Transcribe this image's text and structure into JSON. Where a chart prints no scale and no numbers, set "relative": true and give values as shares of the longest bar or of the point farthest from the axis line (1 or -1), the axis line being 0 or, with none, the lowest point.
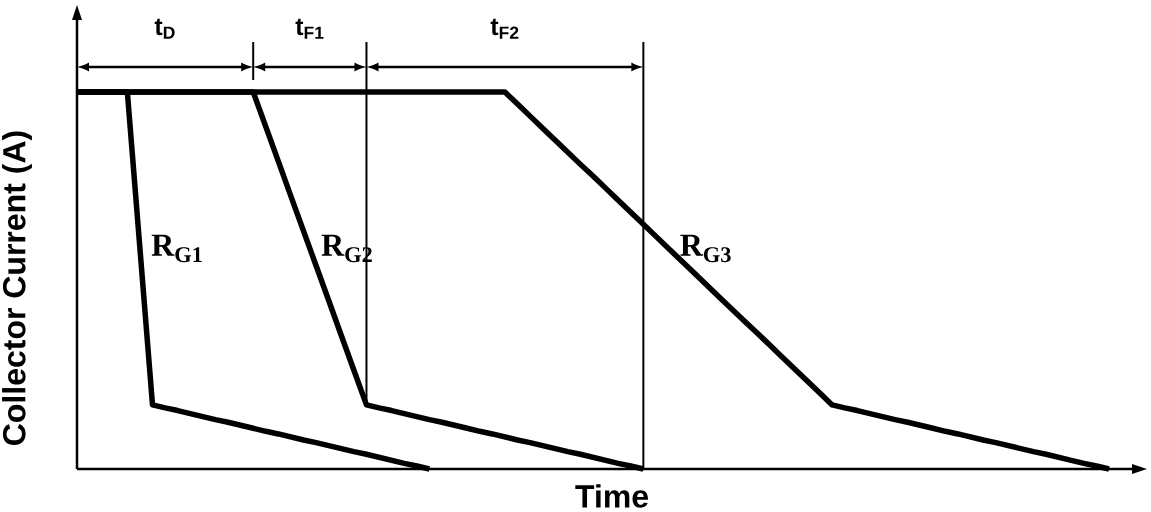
{
  "chart_data": {
    "type": "line",
    "relative": true,
    "xlabel": "Time",
    "ylabel": "Collector Current (A)",
    "categories": [
      null,
      null,
      null,
      null,
      null,
      null,
      null,
      null,
      null,
      null,
      null,
      null,
      null,
      null,
      null,
      null,
      null,
      null,
      null,
      null,
      null,
      null,
      null,
      null,
      null,
      null,
      null,
      null,
      null,
      null,
      null,
      null,
      null,
      null,
      null,
      null,
      null,
      null,
      null,
      null,
      null,
      null,
      null,
      null,
      null,
      null,
      null,
      null,
      null,
      null,
      null,
      null,
      null,
      null,
      null,
      null,
      null,
      null,
      null,
      null,
      null,
      null,
      null,
      null,
      null,
      null,
      null,
      null,
      null,
      null,
      null,
      null,
      null,
      null,
      null,
      null,
      null,
      null,
      null,
      null,
      null,
      null,
      null
    ],
    "series": [
      {
        "name": "R$_{G1}$",
        "color": "#000000",
        "values": [
          1,
          1,
          1,
          1,
          1,
          0.585,
          0.17,
          0.162,
          0.155,
          0.147,
          0.139,
          0.131,
          0.124,
          0.116,
          0.108,
          0.1,
          0.093,
          0.085,
          0.077,
          0.07,
          0.062,
          0.054,
          0.046,
          0.039,
          0.031,
          0.023,
          0.015,
          0.008,
          0,
          null,
          null,
          null,
          null,
          null,
          null,
          null,
          null,
          null,
          null,
          null,
          null,
          null,
          null,
          null,
          null,
          null,
          null,
          null,
          null,
          null,
          null,
          null,
          null,
          null,
          null,
          null,
          null,
          null,
          null,
          null,
          null,
          null,
          null,
          null,
          null,
          null,
          null,
          null,
          null,
          null,
          null,
          null,
          null,
          null,
          null,
          null,
          null,
          null,
          null,
          null,
          null,
          null,
          null
        ]
      },
      {
        "name": "R$_{G2}$",
        "color": "#000000",
        "values": [
          1,
          1,
          1,
          1,
          1,
          1,
          1,
          1,
          1,
          1,
          1,
          1,
          1,
          1,
          1,
          0.908,
          0.816,
          0.723,
          0.631,
          0.539,
          0.447,
          0.354,
          0.262,
          0.17,
          0.162,
          0.155,
          0.147,
          0.139,
          0.131,
          0.124,
          0.116,
          0.108,
          0.1,
          0.093,
          0.085,
          0.077,
          0.07,
          0.062,
          0.054,
          0.046,
          0.039,
          0.031,
          0.023,
          0.015,
          0.008,
          0,
          null,
          null,
          null,
          null,
          null,
          null,
          null,
          null,
          null,
          null,
          null,
          null,
          null,
          null,
          null,
          null,
          null,
          null,
          null,
          null,
          null,
          null,
          null,
          null,
          null,
          null,
          null,
          null,
          null,
          null,
          null,
          null,
          null,
          null,
          null,
          null,
          null
        ]
      },
      {
        "name": "R$_{G3}$",
        "color": "#000000",
        "values": [
          1,
          1,
          1,
          1,
          1,
          1,
          1,
          1,
          1,
          1,
          1,
          1,
          1,
          1,
          1,
          1,
          1,
          1,
          1,
          1,
          1,
          1,
          1,
          1,
          1,
          1,
          1,
          1,
          1,
          1,
          1,
          1,
          1,
          1,
          1,
          0.968,
          0.936,
          0.904,
          0.872,
          0.84,
          0.808,
          0.777,
          0.745,
          0.713,
          0.681,
          0.649,
          0.617,
          0.585,
          0.553,
          0.521,
          0.489,
          0.457,
          0.425,
          0.393,
          0.362,
          0.33,
          0.298,
          0.266,
          0.234,
          0.202,
          0.17,
          0.162,
          0.155,
          0.147,
          0.139,
          0.131,
          0.124,
          0.116,
          0.108,
          0.1,
          0.093,
          0.085,
          0.077,
          0.07,
          0.062,
          0.054,
          0.046,
          0.039,
          0.031,
          0.023,
          0.015,
          0.008,
          0
        ]
      }
    ],
    "annotations": [
      "t$_{D}$",
      "t$_{F1}$",
      "t$_{F2}$"
    ]
  }
}
